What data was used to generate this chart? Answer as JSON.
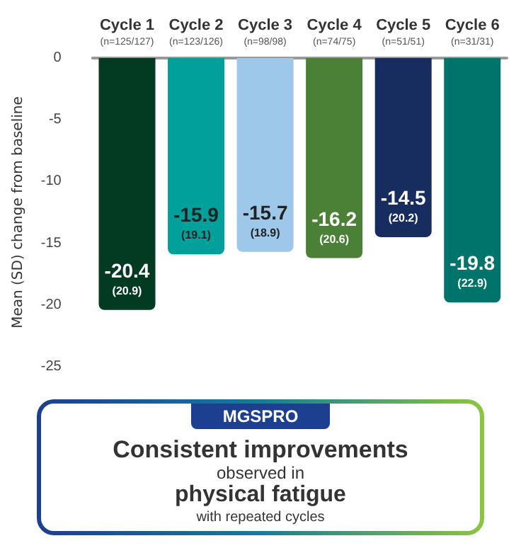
{
  "chart_data": {
    "type": "bar",
    "ylabel": "Mean (SD) change from baseline",
    "categories": [
      "Cycle 1\n(n=125/127)",
      "Cycle 2\n(n=123/126)",
      "Cycle 3\n(n=98/98)",
      "Cycle 4\n(n=74/75)",
      "Cycle 5\n(n=51/51)",
      "Cycle 6\n(n=31/31)"
    ],
    "values": [
      -20.4,
      -15.9,
      -15.7,
      -16.2,
      -14.5,
      -19.8
    ],
    "colors": [
      "#033a22",
      "#01a09a",
      "#9dc8e9",
      "#4a8136",
      "#172d5f",
      "#00736a"
    ],
    "value_labels": [
      "-20.4\n(20.9)",
      "-15.9\n(19.1)",
      "-15.7\n(18.9)",
      "-16.2\n(20.6)",
      "-14.5\n(20.2)",
      "-19.8\n(22.9)"
    ],
    "ylim": [
      -25,
      0
    ],
    "yticks": [
      0,
      -5,
      -10,
      -15,
      -20,
      -25
    ],
    "grid": false,
    "annotations": [
      "MGSPRO",
      "Consistent improvements",
      "observed in",
      "physical fatigue",
      "with repeated cycles"
    ]
  }
}
